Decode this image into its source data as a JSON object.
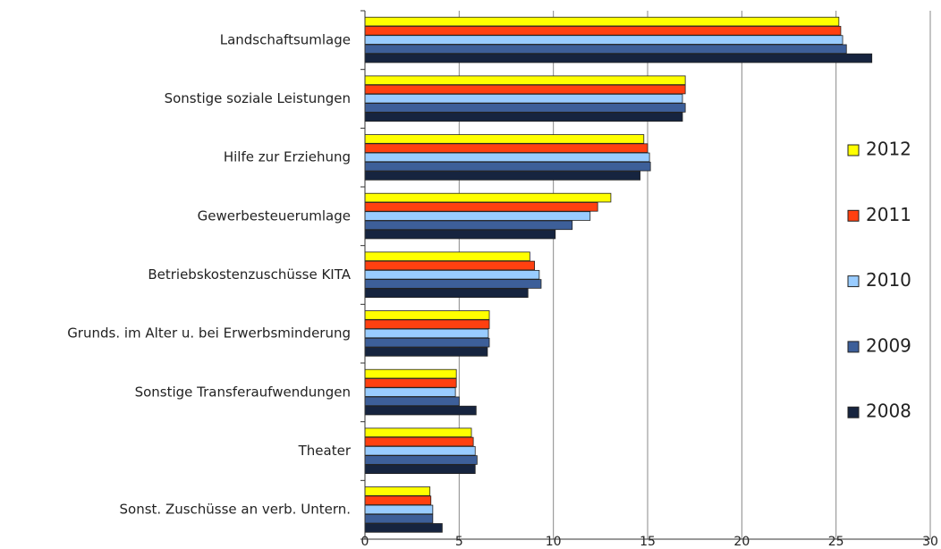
{
  "chart_data": {
    "type": "barh",
    "categories": [
      "Landschaftsumlage",
      "Sonstige soziale Leistungen",
      "Hilfe zur Erziehung",
      "Gewerbesteuerumlage",
      "Betriebskostenzuschüsse KITA",
      "Grunds. im Alter u. bei Erwerbsminderung",
      "Sonstige Transferaufwendungen",
      "Theater",
      "Sonst. Zuschüsse an verb. Untern."
    ],
    "series": [
      {
        "name": "2012",
        "color": "#ffff00",
        "values": [
          25.15,
          17.0,
          14.8,
          13.05,
          8.75,
          6.6,
          4.85,
          5.65,
          3.45
        ]
      },
      {
        "name": "2011",
        "color": "#ff4010",
        "values": [
          25.25,
          17.0,
          15.0,
          12.35,
          9.0,
          6.6,
          4.85,
          5.75,
          3.5
        ]
      },
      {
        "name": "2010",
        "color": "#99ccff",
        "values": [
          25.35,
          16.85,
          15.1,
          11.95,
          9.25,
          6.55,
          4.8,
          5.85,
          3.6
        ]
      },
      {
        "name": "2009",
        "color": "#3d5f99",
        "values": [
          25.55,
          17.0,
          15.15,
          11.0,
          9.35,
          6.6,
          5.0,
          5.95,
          3.6
        ]
      },
      {
        "name": "2008",
        "color": "#16243f",
        "values": [
          26.9,
          16.85,
          14.6,
          10.1,
          8.65,
          6.5,
          5.9,
          5.85,
          4.1
        ]
      }
    ],
    "xlim": [
      0,
      30
    ],
    "xticks": [
      0,
      5,
      10,
      15,
      20,
      25,
      30
    ],
    "grid": true,
    "legend": "right"
  }
}
